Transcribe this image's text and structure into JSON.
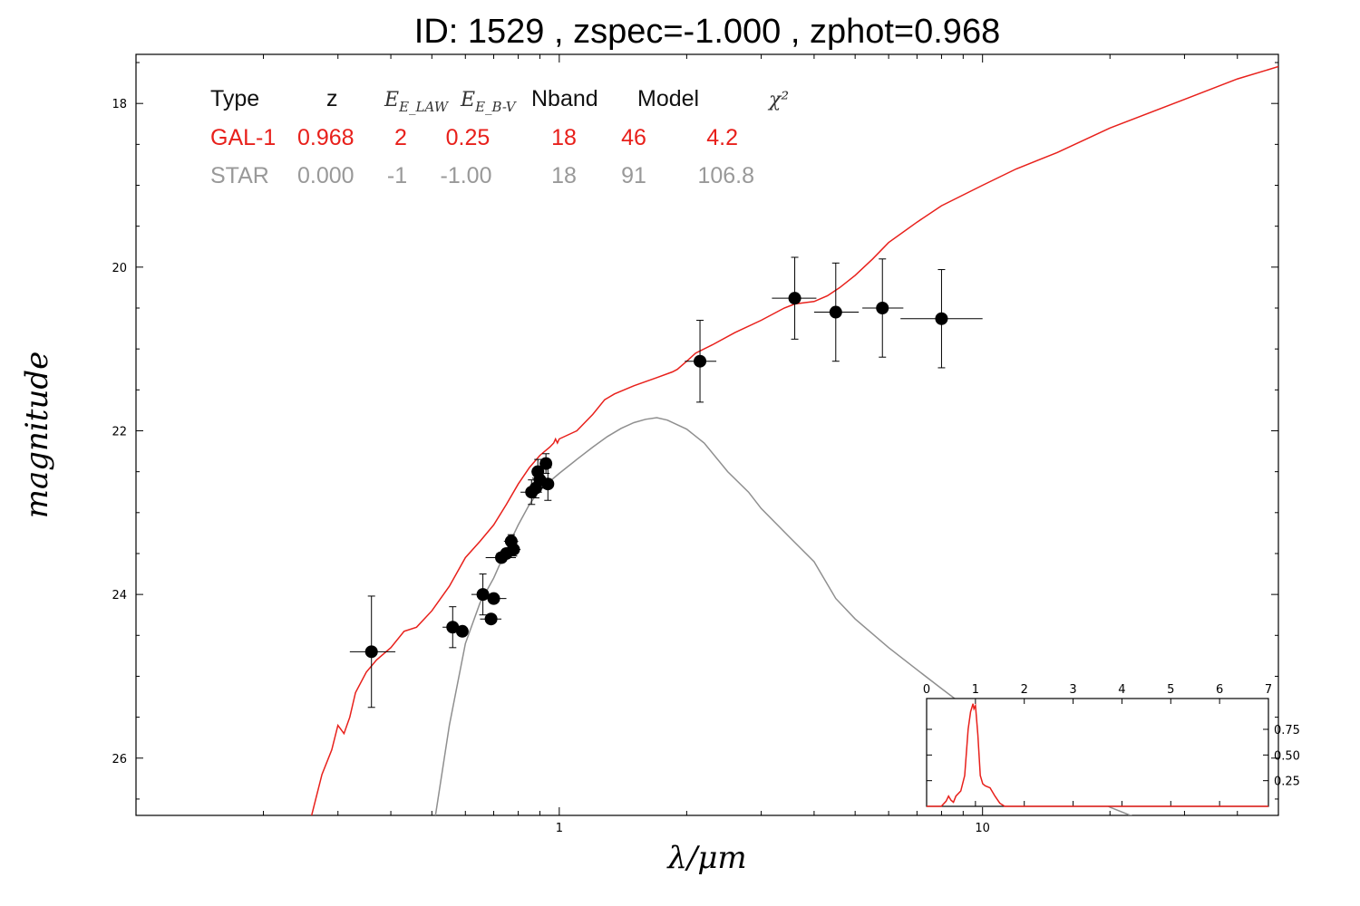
{
  "title": "ID:  1529  , zspec=-1.000 , zphot=0.968",
  "colors": {
    "galaxy": "#e8201b",
    "star": "#8f8f8f",
    "points": "#000000",
    "pdz": "#e8201b"
  },
  "legend_table": {
    "headers": [
      "Type",
      "z",
      "E_LAW",
      "E_B-V",
      "Nband",
      "Model",
      "χ²"
    ],
    "rows": [
      {
        "kind": "galaxy",
        "cells": [
          "GAL-1",
          "0.968",
          "2",
          "0.25",
          "18",
          "46",
          "4.2"
        ]
      },
      {
        "kind": "star",
        "cells": [
          "STAR",
          "0.000",
          "-1",
          "-1.00",
          "18",
          "91",
          "106.8"
        ]
      }
    ]
  },
  "chart_data": [
    {
      "type": "line",
      "title": "ID:  1529  , zspec=-1.000 , zphot=0.968",
      "xlabel": "λ/μm",
      "ylabel": "magnitude",
      "xscale": "log",
      "xlim": [
        0.1,
        50
      ],
      "ylim": [
        26.7,
        17.4
      ],
      "yaxis_inverted": true,
      "x_tick_labels": [
        "1",
        "10"
      ],
      "y_tick_labels": [
        "18",
        "20",
        "22",
        "24",
        "26"
      ],
      "series": [
        {
          "name": "GAL-1",
          "kind": "galaxy_template",
          "x": [
            0.26,
            0.275,
            0.29,
            0.3,
            0.31,
            0.32,
            0.33,
            0.35,
            0.37,
            0.4,
            0.43,
            0.46,
            0.5,
            0.55,
            0.6,
            0.65,
            0.7,
            0.75,
            0.8,
            0.85,
            0.9,
            0.95,
            0.97,
            0.98,
            0.99,
            1.0,
            1.1,
            1.2,
            1.28,
            1.3,
            1.35,
            1.5,
            1.7,
            1.85,
            1.9,
            2.0,
            2.1,
            2.3,
            2.6,
            3.0,
            3.4,
            3.6,
            4.0,
            4.3,
            4.6,
            5.0,
            5.5,
            6.0,
            7.0,
            8.0,
            10.0,
            12.0,
            15.0,
            20.0,
            30.0,
            40.0,
            50.0
          ],
          "y": [
            26.7,
            26.2,
            25.9,
            25.6,
            25.7,
            25.5,
            25.2,
            24.95,
            24.8,
            24.65,
            24.45,
            24.4,
            24.2,
            23.9,
            23.55,
            23.35,
            23.15,
            22.9,
            22.65,
            22.45,
            22.3,
            22.2,
            22.15,
            22.1,
            22.15,
            22.1,
            22.0,
            21.8,
            21.62,
            21.6,
            21.55,
            21.45,
            21.35,
            21.28,
            21.25,
            21.15,
            21.05,
            20.95,
            20.8,
            20.65,
            20.5,
            20.45,
            20.42,
            20.35,
            20.25,
            20.1,
            19.9,
            19.7,
            19.45,
            19.25,
            19.0,
            18.8,
            18.6,
            18.3,
            17.95,
            17.7,
            17.55
          ]
        },
        {
          "name": "STAR",
          "kind": "star_template",
          "x": [
            0.51,
            0.55,
            0.6,
            0.65,
            0.7,
            0.75,
            0.8,
            0.85,
            0.9,
            1.0,
            1.1,
            1.2,
            1.3,
            1.4,
            1.5,
            1.6,
            1.7,
            1.8,
            2.0,
            2.2,
            2.5,
            2.8,
            3.0,
            3.5,
            4.0,
            4.5,
            5.0,
            6.0,
            7.0,
            8.0,
            9.0,
            10.0,
            12.0,
            15.0,
            20.0,
            25.0
          ],
          "y": [
            26.7,
            25.6,
            24.6,
            24.1,
            23.8,
            23.45,
            23.15,
            22.9,
            22.72,
            22.52,
            22.35,
            22.2,
            22.07,
            21.97,
            21.9,
            21.86,
            21.84,
            21.87,
            21.98,
            22.15,
            22.5,
            22.75,
            22.95,
            23.3,
            23.6,
            24.05,
            24.3,
            24.65,
            24.92,
            25.15,
            25.35,
            25.55,
            25.85,
            26.2,
            26.6,
            26.8
          ]
        }
      ],
      "points": {
        "name": "photometry",
        "x": [
          0.36,
          0.56,
          0.59,
          0.66,
          0.69,
          0.7,
          0.73,
          0.75,
          0.77,
          0.78,
          0.86,
          0.88,
          0.89,
          0.9,
          0.93,
          0.94,
          2.15,
          3.6,
          4.5,
          5.8,
          8.0
        ],
        "y": [
          24.7,
          24.4,
          24.45,
          24.0,
          24.3,
          24.05,
          23.55,
          23.5,
          23.35,
          23.45,
          22.75,
          22.7,
          22.5,
          22.6,
          22.4,
          22.65,
          21.15,
          20.38,
          20.55,
          20.5,
          20.63
        ],
        "xerr_lo": [
          0.04,
          0.03,
          0.02,
          0.04,
          0.04,
          0.05,
          0.06,
          0.04,
          0.03,
          0.03,
          0.05,
          0.04,
          0.03,
          0.03,
          0.03,
          0.02,
          0.17,
          0.42,
          0.5,
          0.6,
          1.6
        ],
        "xerr_hi": [
          0.05,
          0.03,
          0.02,
          0.04,
          0.04,
          0.05,
          0.06,
          0.04,
          0.03,
          0.03,
          0.05,
          0.04,
          0.03,
          0.03,
          0.03,
          0.02,
          0.2,
          0.45,
          0.6,
          0.7,
          2.0
        ],
        "yerr": [
          0.68,
          0.25,
          0.05,
          0.25,
          0.05,
          0.05,
          0.06,
          0.05,
          0.08,
          0.08,
          0.15,
          0.12,
          0.15,
          0.1,
          0.12,
          0.2,
          0.5,
          0.5,
          0.6,
          0.6,
          0.6
        ]
      }
    },
    {
      "type": "line",
      "kind": "inset_pdz",
      "xlim": [
        0,
        7
      ],
      "ylim": [
        0,
        1.05
      ],
      "x_tick_labels": [
        "0",
        "1",
        "2",
        "3",
        "4",
        "5",
        "6",
        "7"
      ],
      "y_tick_labels": [
        "0.25",
        "0.50",
        "0.75"
      ],
      "x": [
        0.0,
        0.3,
        0.4,
        0.45,
        0.5,
        0.55,
        0.6,
        0.7,
        0.78,
        0.85,
        0.9,
        0.95,
        0.97,
        1.0,
        1.05,
        1.1,
        1.15,
        1.2,
        1.3,
        1.4,
        1.5,
        1.6,
        7.0
      ],
      "y": [
        0.0,
        0.0,
        0.05,
        0.1,
        0.06,
        0.04,
        0.1,
        0.15,
        0.3,
        0.75,
        0.92,
        1.0,
        0.95,
        0.98,
        0.7,
        0.3,
        0.22,
        0.2,
        0.18,
        0.1,
        0.03,
        0.0,
        0.0
      ]
    }
  ]
}
